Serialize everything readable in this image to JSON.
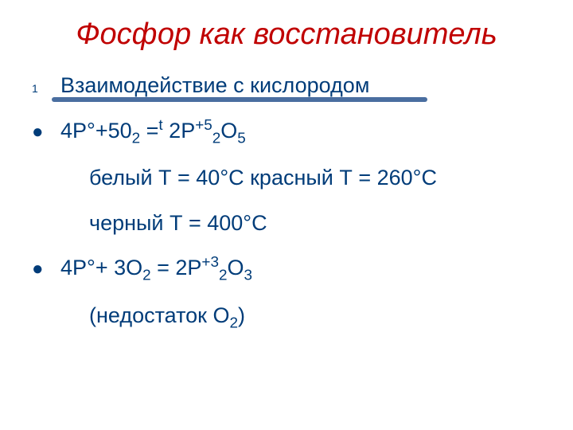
{
  "title": {
    "text": "Фосфор как  восстановитель",
    "color": "#c00000",
    "fontsize": 38
  },
  "list": {
    "item1": {
      "marker": "1",
      "text": "Взаимодействие с кислородом",
      "marker_color": "#003c79"
    },
    "item2": {
      "marker": "●",
      "parts": {
        "p1": "4P°+50",
        "sub1": "2",
        "p2": " =",
        "sup1": "t",
        "p3": " 2P",
        "sup2": "+5",
        "sub2": "2",
        "p4": "O",
        "sub3": "5"
      }
    },
    "item3": {
      "text": " белый Т = 40°С  красный Т = 260°С "
    },
    "item4": {
      "text": "черный Т = 400°С"
    },
    "item5": {
      "marker": "●",
      "parts": {
        "p1": "4P°+ 3O",
        "sub1": "2",
        "p2": " = 2P",
        "sup1": "+3",
        "sub2": "2",
        "p3": "O",
        "sub3": "3"
      }
    },
    "item6": {
      "parts": {
        "p1": "(недостаток О",
        "sub1": "2",
        "p2": ")"
      }
    }
  },
  "underline": {
    "color": "#4a6ea0"
  },
  "colors": {
    "text": "#003c79",
    "title": "#c00000",
    "marker": "#003c79"
  }
}
